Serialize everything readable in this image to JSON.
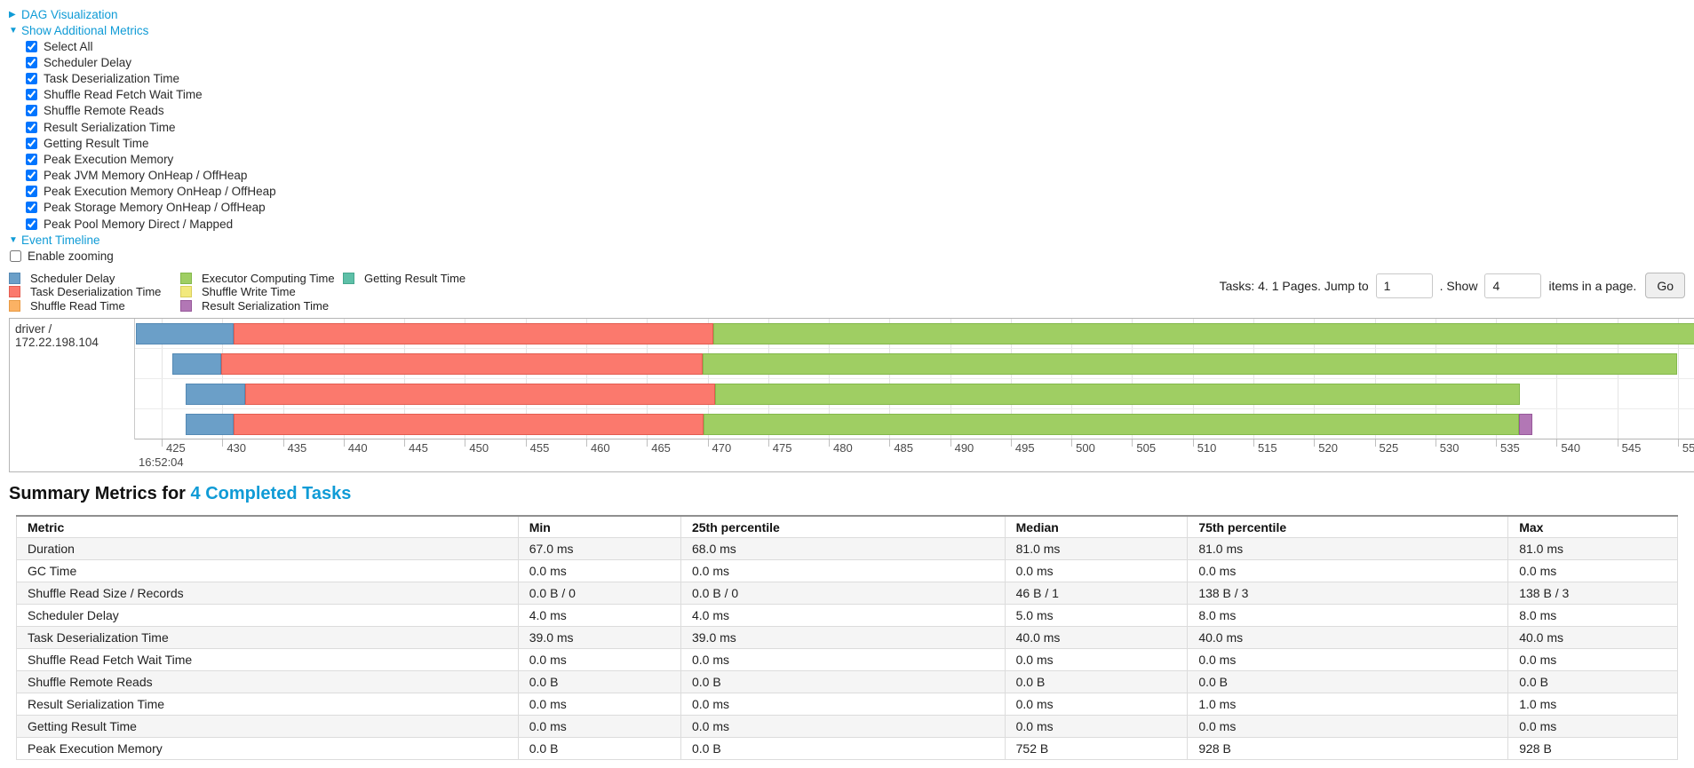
{
  "controls": {
    "dag_link": "DAG Visualization",
    "metrics_link": "Show Additional Metrics",
    "metric_checkboxes": [
      {
        "label": "Select All",
        "checked": true
      },
      {
        "label": "Scheduler Delay",
        "checked": true
      },
      {
        "label": "Task Deserialization Time",
        "checked": true
      },
      {
        "label": "Shuffle Read Fetch Wait Time",
        "checked": true
      },
      {
        "label": "Shuffle Remote Reads",
        "checked": true
      },
      {
        "label": "Result Serialization Time",
        "checked": true
      },
      {
        "label": "Getting Result Time",
        "checked": true
      },
      {
        "label": "Peak Execution Memory",
        "checked": true
      },
      {
        "label": "Peak JVM Memory OnHeap / OffHeap",
        "checked": true
      },
      {
        "label": "Peak Execution Memory OnHeap / OffHeap",
        "checked": true
      },
      {
        "label": "Peak Storage Memory OnHeap / OffHeap",
        "checked": true
      },
      {
        "label": "Peak Pool Memory Direct / Mapped",
        "checked": true
      }
    ],
    "event_timeline_link": "Event Timeline",
    "enable_zooming": {
      "label": "Enable zooming",
      "checked": false
    }
  },
  "legend": {
    "items": [
      {
        "key": "scheduler_delay",
        "label": "Scheduler Delay",
        "color": "#6B9FC8",
        "border": "#5489B4"
      },
      {
        "key": "task_deserialization_time",
        "label": "Task Deserialization Time",
        "color": "#FB796D",
        "border": "#E35C50"
      },
      {
        "key": "shuffle_read_time",
        "label": "Shuffle Read Time",
        "color": "#FBB264",
        "border": "#E99A43"
      },
      {
        "key": "executor_computing_time",
        "label": "Executor Computing Time",
        "color": "#9FCE63",
        "border": "#83B84B"
      },
      {
        "key": "shuffle_write_time",
        "label": "Shuffle Write Time",
        "color": "#F2E97C",
        "border": "#D9CE5B"
      },
      {
        "key": "result_serialization_time",
        "label": "Result Serialization Time",
        "color": "#B277B5",
        "border": "#97589A"
      },
      {
        "key": "getting_result_time",
        "label": "Getting Result Time",
        "color": "#5EC0A8",
        "border": "#45A78E"
      }
    ]
  },
  "pagination": {
    "tasks_text": "Tasks: 4. 1 Pages. Jump to",
    "jump_value": "1",
    "show_label": ". Show",
    "show_value": "4",
    "items_label": "items in a page.",
    "go_label": "Go"
  },
  "chart_data": {
    "type": "timeline",
    "group_label": "driver / 172.22.198.104",
    "time_axis": {
      "min": 422.8,
      "max": 551.4,
      "tick_start": 425,
      "tick_step": 5,
      "tick_end": 550,
      "major_tick_label": "16:52:04",
      "unit": "milliseconds within second 16:52:04"
    },
    "tasks": [
      {
        "segments": [
          {
            "series": "scheduler_delay",
            "start": 422.9,
            "end": 430.9
          },
          {
            "series": "task_deserialization_time",
            "start": 430.9,
            "end": 470.5
          },
          {
            "series": "executor_computing_time",
            "start": 470.5,
            "end": 551.4
          }
        ]
      },
      {
        "segments": [
          {
            "series": "scheduler_delay",
            "start": 425.9,
            "end": 429.9
          },
          {
            "series": "task_deserialization_time",
            "start": 429.9,
            "end": 469.6
          },
          {
            "series": "executor_computing_time",
            "start": 469.6,
            "end": 549.9
          }
        ]
      },
      {
        "segments": [
          {
            "series": "scheduler_delay",
            "start": 427.0,
            "end": 431.9
          },
          {
            "series": "task_deserialization_time",
            "start": 431.9,
            "end": 470.6
          },
          {
            "series": "executor_computing_time",
            "start": 470.6,
            "end": 537.0
          }
        ]
      },
      {
        "segments": [
          {
            "series": "scheduler_delay",
            "start": 427.0,
            "end": 430.9
          },
          {
            "series": "task_deserialization_time",
            "start": 430.9,
            "end": 469.7
          },
          {
            "series": "executor_computing_time",
            "start": 469.7,
            "end": 536.9
          },
          {
            "series": "result_serialization_time",
            "start": 536.9,
            "end": 538.0
          }
        ]
      }
    ]
  },
  "summary": {
    "title_prefix": "Summary Metrics for ",
    "title_link": "4 Completed Tasks",
    "table": {
      "headers": [
        "Metric",
        "Min",
        "25th percentile",
        "Median",
        "75th percentile",
        "Max"
      ],
      "rows": [
        [
          "Duration",
          "67.0 ms",
          "68.0 ms",
          "81.0 ms",
          "81.0 ms",
          "81.0 ms"
        ],
        [
          "GC Time",
          "0.0 ms",
          "0.0 ms",
          "0.0 ms",
          "0.0 ms",
          "0.0 ms"
        ],
        [
          "Shuffle Read Size / Records",
          "0.0 B / 0",
          "0.0 B / 0",
          "46 B / 1",
          "138 B / 3",
          "138 B / 3"
        ],
        [
          "Scheduler Delay",
          "4.0 ms",
          "4.0 ms",
          "5.0 ms",
          "8.0 ms",
          "8.0 ms"
        ],
        [
          "Task Deserialization Time",
          "39.0 ms",
          "39.0 ms",
          "40.0 ms",
          "40.0 ms",
          "40.0 ms"
        ],
        [
          "Shuffle Read Fetch Wait Time",
          "0.0 ms",
          "0.0 ms",
          "0.0 ms",
          "0.0 ms",
          "0.0 ms"
        ],
        [
          "Shuffle Remote Reads",
          "0.0 B",
          "0.0 B",
          "0.0 B",
          "0.0 B",
          "0.0 B"
        ],
        [
          "Result Serialization Time",
          "0.0 ms",
          "0.0 ms",
          "0.0 ms",
          "1.0 ms",
          "1.0 ms"
        ],
        [
          "Getting Result Time",
          "0.0 ms",
          "0.0 ms",
          "0.0 ms",
          "0.0 ms",
          "0.0 ms"
        ],
        [
          "Peak Execution Memory",
          "0.0 B",
          "0.0 B",
          "752 B",
          "928 B",
          "928 B"
        ]
      ]
    }
  }
}
